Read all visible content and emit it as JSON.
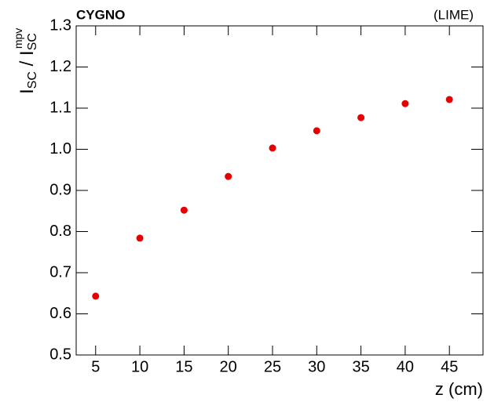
{
  "chart_data": {
    "type": "scatter",
    "title": "CYGNO",
    "subtitle": "(LIME)",
    "x_label": "z (cm)",
    "y_label": {
      "main1": "I",
      "sub1": "SC",
      "sep": " / ",
      "main2": "I",
      "sub2": "SC",
      "sup2": "mpv"
    },
    "x": [
      5,
      10,
      15,
      20,
      25,
      30,
      35,
      40,
      45
    ],
    "series": [
      {
        "color": "#e60000",
        "values": [
          0.643,
          0.784,
          0.852,
          0.934,
          1.003,
          1.045,
          1.077,
          1.111,
          1.121
        ]
      }
    ],
    "xlim": [
      2.8,
      48.8
    ],
    "ylim": [
      0.5,
      1.3
    ],
    "xticks": [
      5,
      10,
      15,
      20,
      25,
      30,
      35,
      40,
      45
    ],
    "yticks": [
      0.5,
      0.6,
      0.7,
      0.8,
      0.9,
      {
        "value": 1.0,
        "label": "1.0"
      },
      1.1,
      1.2,
      1.3
    ]
  }
}
